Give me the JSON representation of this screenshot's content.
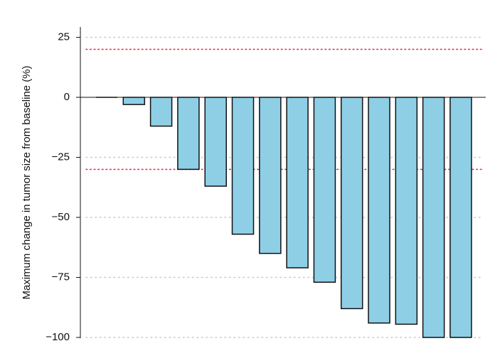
{
  "chart_data": {
    "type": "bar",
    "title": "",
    "xlabel": "",
    "ylabel": "Maximum change in tumor size from baseline (%)",
    "ylim": [
      -100,
      30
    ],
    "yticks": [
      25,
      0,
      -25,
      -50,
      -75,
      -100
    ],
    "ytick_labels": [
      "25",
      "0",
      "−25",
      "−50",
      "−75",
      "−100"
    ],
    "values": [
      0,
      -3,
      -12,
      -30,
      -37,
      -57,
      -65,
      -71,
      -77,
      -88,
      -94,
      -94.5,
      -100,
      -100
    ],
    "reference_lines": [
      20,
      -30
    ],
    "grid": "horizontal dotted",
    "colors": {
      "bar_fill": "#8ecfe6",
      "bar_stroke": "#111111",
      "reference_line": "#e8304a",
      "grid": "#c8c8c8"
    }
  }
}
